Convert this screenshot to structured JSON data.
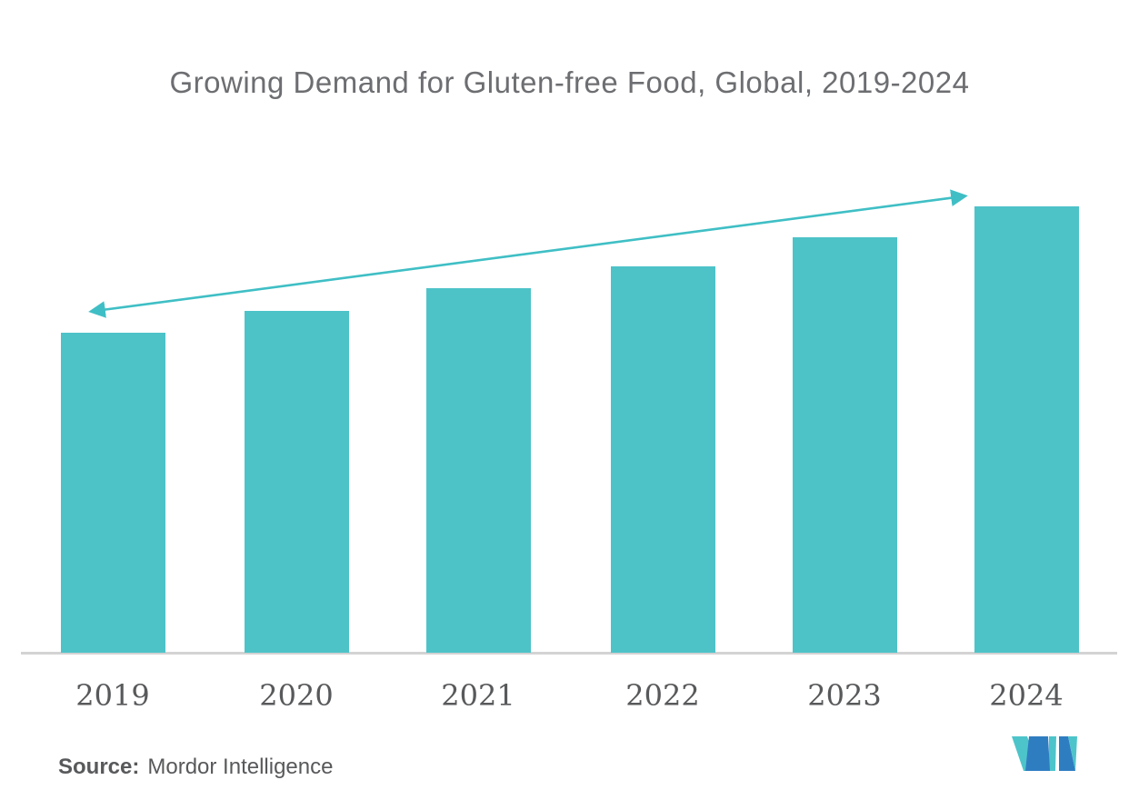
{
  "title": "Growing Demand for Gluten-free Food, Global, 2019-2024",
  "source": {
    "label": "Source:",
    "name": "Mordor Intelligence"
  },
  "colors": {
    "background": "#FFFFFF",
    "bar": "#4DC3C8",
    "arrow": "#3FBFC5",
    "title_text": "#6D6E71",
    "axis_label_text": "#58595B",
    "source_text": "#58595B",
    "axis_line": "#D3D3D3",
    "logo_teal": "#4DC4CA",
    "logo_blue": "#2F7DC1"
  },
  "chart_data": {
    "type": "bar",
    "title": "Growing Demand for Gluten-free Food, Global, 2019-2024",
    "categories": [
      "2019",
      "2020",
      "2021",
      "2022",
      "2023",
      "2024"
    ],
    "values_pct_of_max": [
      71.7,
      76.6,
      81.7,
      86.6,
      93.1,
      100
    ],
    "xlabel": "",
    "ylabel": "",
    "y_axis_visible": false,
    "grid": false,
    "legend": "none",
    "bar_color": "#4DC3C8",
    "annotations": [
      {
        "type": "double-headed-arrow",
        "meaning": "upward growth trend across bars",
        "from_category": "2019",
        "to_category": "2024",
        "color": "#3FBFC5"
      }
    ]
  },
  "logo": {
    "name": "mordor-intelligence-logo"
  }
}
